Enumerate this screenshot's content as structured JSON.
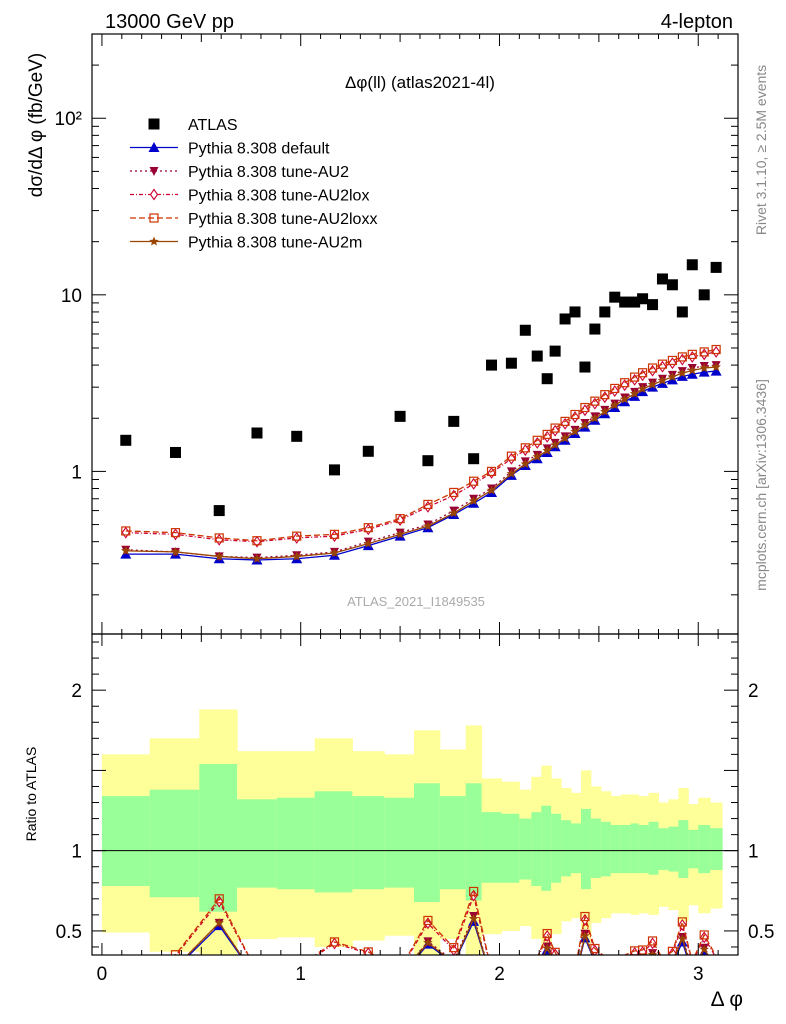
{
  "header": {
    "left": "13000 GeV pp",
    "right": "4-lepton"
  },
  "side": {
    "rivet": "Rivet 3.1.10, ≥ 2.5M events",
    "mcplots": "mcplots.cern.ch [arXiv:1306.3436]"
  },
  "watermark": "ATLAS_2021_I1849535",
  "colors": {
    "data": "#000000",
    "default": "#0000cc",
    "au2": "#990033",
    "au2lox": "#cc0033",
    "au2loxx": "#cc3300",
    "au2m": "#994400",
    "band_inner": "#99ff99",
    "band_outer": "#ffff99"
  },
  "chart_data": {
    "type": "scatter",
    "title": "Δφ(ll) (atlas2021-4l)",
    "ylabel": "dσ/dΔ φ (fb/GeV)",
    "xlabel": "Δ φ",
    "ratio_ylabel": "Ratio to ATLAS",
    "yscale": "log",
    "xlim": [
      -0.05,
      3.2
    ],
    "ylim": [
      0.12,
      300
    ],
    "ratio_ylim": [
      0.35,
      2.35
    ],
    "xticks": [
      "0",
      "1",
      "2",
      "3"
    ],
    "yticks": [
      "1",
      "10",
      "10²"
    ],
    "ratio_yticks": [
      "0.5",
      "1",
      "2"
    ],
    "legend_position": "top-left",
    "x": [
      0.12,
      0.37,
      0.59,
      0.78,
      0.98,
      1.17,
      1.34,
      1.5,
      1.64,
      1.77,
      1.87,
      1.96,
      2.06,
      2.13,
      2.19,
      2.24,
      2.28,
      2.33,
      2.38,
      2.43,
      2.48,
      2.53,
      2.58,
      2.63,
      2.68,
      2.72,
      2.77,
      2.82,
      2.87,
      2.92,
      2.97,
      3.03,
      3.09
    ],
    "series": [
      {
        "name": "ATLAS",
        "marker": "square",
        "values": [
          1.5,
          1.28,
          0.6,
          1.65,
          1.58,
          1.02,
          1.3,
          2.05,
          1.15,
          1.92,
          1.18,
          4.0,
          4.1,
          6.3,
          4.5,
          3.35,
          4.8,
          7.3,
          8.0,
          3.9,
          6.4,
          8.0,
          9.7,
          9.1,
          9.1,
          9.5,
          8.8,
          12.3,
          11.4,
          8.0,
          14.8,
          10.0,
          14.3
        ]
      },
      {
        "name": "Pythia 8.308 default",
        "marker": "triangle-up",
        "dash": "",
        "values": [
          0.34,
          0.34,
          0.32,
          0.315,
          0.32,
          0.335,
          0.38,
          0.43,
          0.48,
          0.57,
          0.66,
          0.76,
          0.95,
          1.08,
          1.18,
          1.28,
          1.38,
          1.5,
          1.64,
          1.78,
          1.95,
          2.12,
          2.3,
          2.48,
          2.66,
          2.83,
          3.0,
          3.15,
          3.3,
          3.45,
          3.55,
          3.65,
          3.7
        ]
      },
      {
        "name": "Pythia 8.308 tune-AU2",
        "marker": "triangle-down",
        "dash": "2,3",
        "values": [
          0.36,
          0.35,
          0.33,
          0.325,
          0.335,
          0.35,
          0.4,
          0.45,
          0.5,
          0.6,
          0.7,
          0.8,
          1.0,
          1.14,
          1.24,
          1.35,
          1.45,
          1.58,
          1.72,
          1.88,
          2.05,
          2.23,
          2.42,
          2.62,
          2.82,
          3.0,
          3.18,
          3.35,
          3.52,
          3.7,
          3.85,
          3.95,
          4.0
        ]
      },
      {
        "name": "Pythia 8.308 tune-AU2lox",
        "marker": "diamond-open",
        "dash": "4,2,1,2",
        "values": [
          0.45,
          0.44,
          0.41,
          0.4,
          0.42,
          0.43,
          0.47,
          0.53,
          0.63,
          0.73,
          0.85,
          0.98,
          1.18,
          1.32,
          1.45,
          1.57,
          1.7,
          1.86,
          2.03,
          2.22,
          2.42,
          2.63,
          2.85,
          3.08,
          3.3,
          3.5,
          3.72,
          3.92,
          4.1,
          4.3,
          4.45,
          4.6,
          4.75
        ]
      },
      {
        "name": "Pythia 8.308 tune-AU2loxx",
        "marker": "square-open",
        "dash": "6,3",
        "values": [
          0.46,
          0.45,
          0.42,
          0.405,
          0.43,
          0.44,
          0.48,
          0.54,
          0.65,
          0.76,
          0.88,
          1.0,
          1.22,
          1.36,
          1.5,
          1.62,
          1.76,
          1.92,
          2.1,
          2.3,
          2.5,
          2.72,
          2.95,
          3.18,
          3.42,
          3.62,
          3.85,
          4.05,
          4.25,
          4.45,
          4.6,
          4.75,
          4.9
        ]
      },
      {
        "name": "Pythia 8.308 tune-AU2m",
        "marker": "star",
        "dash": "",
        "values": [
          0.355,
          0.35,
          0.33,
          0.32,
          0.33,
          0.345,
          0.39,
          0.44,
          0.49,
          0.58,
          0.68,
          0.78,
          0.97,
          1.1,
          1.21,
          1.31,
          1.41,
          1.54,
          1.68,
          1.83,
          2.0,
          2.18,
          2.37,
          2.56,
          2.75,
          2.93,
          3.1,
          3.27,
          3.43,
          3.6,
          3.73,
          3.85,
          3.9
        ]
      }
    ],
    "ratio_bands": {
      "edges": [
        0.0,
        0.24,
        0.49,
        0.68,
        0.88,
        1.07,
        1.26,
        1.42,
        1.57,
        1.7,
        1.83,
        1.91,
        2.01,
        2.1,
        2.16,
        2.21,
        2.26,
        2.31,
        2.36,
        2.41,
        2.46,
        2.51,
        2.56,
        2.61,
        2.66,
        2.7,
        2.75,
        2.8,
        2.85,
        2.9,
        2.95,
        3.0,
        3.06,
        3.12
      ],
      "inner_lo": [
        0.78,
        0.71,
        0.62,
        0.77,
        0.76,
        0.74,
        0.76,
        0.77,
        0.68,
        0.76,
        0.69,
        0.8,
        0.8,
        0.82,
        0.78,
        0.75,
        0.8,
        0.84,
        0.86,
        0.76,
        0.83,
        0.84,
        0.86,
        0.86,
        0.86,
        0.86,
        0.85,
        0.88,
        0.87,
        0.83,
        0.89,
        0.86,
        0.88
      ],
      "inner_hi": [
        1.34,
        1.38,
        1.54,
        1.32,
        1.33,
        1.37,
        1.34,
        1.33,
        1.42,
        1.34,
        1.42,
        1.24,
        1.23,
        1.2,
        1.24,
        1.28,
        1.23,
        1.19,
        1.17,
        1.26,
        1.2,
        1.18,
        1.16,
        1.16,
        1.17,
        1.16,
        1.18,
        1.14,
        1.15,
        1.19,
        1.13,
        1.16,
        1.14
      ],
      "outer_lo": [
        0.49,
        0.37,
        0.15,
        0.45,
        0.46,
        0.4,
        0.44,
        0.47,
        0.32,
        0.45,
        0.33,
        0.48,
        0.5,
        0.53,
        0.45,
        0.4,
        0.48,
        0.56,
        0.58,
        0.42,
        0.55,
        0.58,
        0.61,
        0.61,
        0.6,
        0.61,
        0.6,
        0.65,
        0.63,
        0.56,
        0.66,
        0.61,
        0.64
      ],
      "outer_hi": [
        1.6,
        1.7,
        1.88,
        1.62,
        1.62,
        1.7,
        1.62,
        1.6,
        1.75,
        1.63,
        1.78,
        1.45,
        1.43,
        1.38,
        1.46,
        1.53,
        1.45,
        1.39,
        1.36,
        1.5,
        1.4,
        1.37,
        1.34,
        1.35,
        1.35,
        1.34,
        1.36,
        1.3,
        1.32,
        1.39,
        1.29,
        1.33,
        1.3
      ]
    }
  }
}
